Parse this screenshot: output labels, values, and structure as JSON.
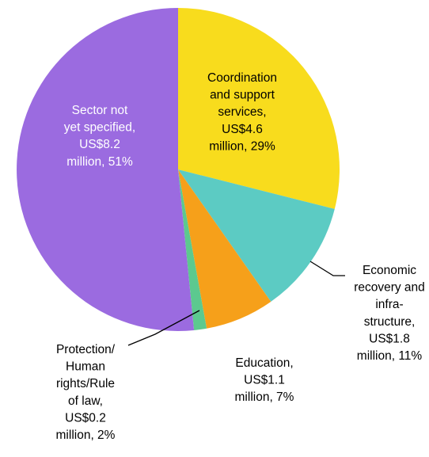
{
  "chart_data": {
    "type": "pie",
    "title": "",
    "unit": "US$ million",
    "start_angle_deg": 0,
    "direction": "clockwise",
    "legend": "none",
    "slices": [
      {
        "label_lines": [
          "Coordination",
          "and support",
          "services,",
          "US$4.6",
          "million, 29%"
        ],
        "category": "Coordination and support services",
        "value": 4.6,
        "percent": 29,
        "color": "#f8dc1d",
        "label_color": "#000000"
      },
      {
        "label_lines": [
          "Economic",
          "recovery and",
          "infra-",
          "structure,",
          "US$1.8",
          "million, 11%"
        ],
        "category": "Economic recovery and infrastructure",
        "value": 1.8,
        "percent": 11,
        "color": "#5ccbc3",
        "label_color": "#000000"
      },
      {
        "label_lines": [
          "Education,",
          "US$1.1",
          "million, 7%"
        ],
        "category": "Education",
        "value": 1.1,
        "percent": 7,
        "color": "#f6a01a",
        "label_color": "#000000"
      },
      {
        "label_lines": [
          "Protection/",
          "Human",
          "rights/Rule",
          "of law,",
          "US$0.2",
          "million, 2%"
        ],
        "category": "Protection/Human rights/Rule of law",
        "value": 0.2,
        "percent": 2,
        "color": "#5cc98f",
        "label_color": "#000000"
      },
      {
        "label_lines": [
          "Sector not",
          "yet specified,",
          "US$8.2",
          "million, 51%"
        ],
        "category": "Sector not yet specified",
        "value": 8.2,
        "percent": 51,
        "color": "#9b6be0",
        "label_color": "#ffffff"
      }
    ]
  }
}
